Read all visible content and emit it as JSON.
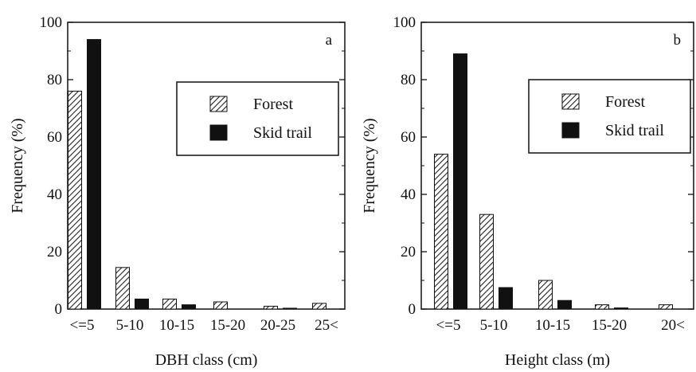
{
  "chart_data": [
    {
      "type": "bar",
      "panel_letter": "a",
      "xlabel": "DBH class (cm)",
      "ylabel": "Frequency (%)",
      "categories": [
        "<=5",
        "5-10",
        "10-15",
        "15-20",
        "20-25",
        "25<"
      ],
      "series": [
        {
          "name": "Forest",
          "values": [
            76,
            14.5,
            3.5,
            2.5,
            1,
            2
          ],
          "pattern": "hatched"
        },
        {
          "name": "Skid trail",
          "values": [
            94,
            3.5,
            1.5,
            0,
            0.3,
            0
          ],
          "color": "#111111"
        }
      ],
      "ylim": [
        0,
        100
      ],
      "yticks": [
        0,
        20,
        40,
        60,
        80,
        100
      ],
      "legend_position": "upper-right",
      "grid": false
    },
    {
      "type": "bar",
      "panel_letter": "b",
      "xlabel": "Height class (m)",
      "ylabel": "Frequency (%)",
      "categories": [
        "<=5",
        "5-10",
        "10-15",
        "15-20",
        "20<"
      ],
      "series": [
        {
          "name": "Forest",
          "values": [
            54,
            33,
            10,
            1.5,
            1.5
          ],
          "pattern": "hatched"
        },
        {
          "name": "Skid trail",
          "values": [
            89,
            7.5,
            3,
            0.4,
            0
          ],
          "color": "#111111"
        }
      ],
      "ylim": [
        0,
        100
      ],
      "yticks": [
        0,
        20,
        40,
        60,
        80,
        100
      ],
      "legend_position": "upper-right",
      "grid": false
    }
  ]
}
